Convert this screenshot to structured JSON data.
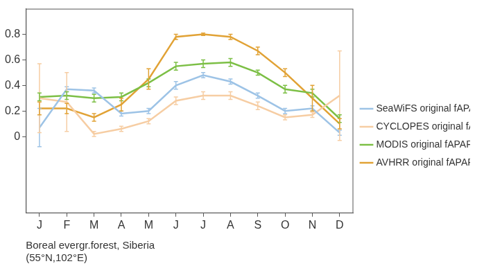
{
  "chart_data": {
    "type": "line",
    "x_label": [
      "Boreal evergr.forest, Siberia",
      "(55°N,102°E)"
    ],
    "categories": [
      "J",
      "F",
      "M",
      "A",
      "M",
      "J",
      "J",
      "A",
      "S",
      "O",
      "N",
      "D"
    ],
    "series": [
      {
        "name": "SeaWiFS original fAPAR",
        "color": "#9dc3e6",
        "values": [
          0.07,
          0.37,
          0.36,
          0.18,
          0.2,
          0.4,
          0.48,
          0.43,
          0.32,
          0.2,
          0.22,
          0.03
        ],
        "errors": [
          0.15,
          0.02,
          0.02,
          0.02,
          0.02,
          0.03,
          0.02,
          0.02,
          0.02,
          0.02,
          0.02,
          0.02
        ]
      },
      {
        "name": "CYCLOPES original fAPAR",
        "color": "#f6cda3",
        "values": [
          0.3,
          0.27,
          0.02,
          0.06,
          0.12,
          0.28,
          0.32,
          0.32,
          0.24,
          0.15,
          0.17,
          0.32
        ],
        "errors": [
          0.27,
          0.23,
          0.02,
          0.02,
          0.02,
          0.03,
          0.03,
          0.03,
          0.03,
          0.02,
          0.02,
          0.35
        ]
      },
      {
        "name": "MODIS original fAPAR",
        "color": "#7cbf45",
        "values": [
          0.31,
          0.32,
          0.3,
          0.31,
          0.42,
          0.55,
          0.57,
          0.58,
          0.5,
          0.37,
          0.34,
          0.14
        ],
        "errors": [
          0.03,
          0.03,
          0.03,
          0.03,
          0.03,
          0.03,
          0.03,
          0.03,
          0.02,
          0.03,
          0.03,
          0.03
        ]
      },
      {
        "name": "AVHRR original fAPAR",
        "color": "#e1a235",
        "values": [
          0.22,
          0.22,
          0.15,
          0.25,
          0.45,
          0.78,
          0.8,
          0.78,
          0.67,
          0.5,
          0.3,
          0.1
        ],
        "errors": [
          0.05,
          0.04,
          0.03,
          0.05,
          0.08,
          0.02,
          0.01,
          0.02,
          0.03,
          0.03,
          0.1,
          0.04
        ]
      }
    ],
    "ylim": [
      -0.6,
      1.0
    ],
    "yticks": [
      0,
      0.2,
      0.4,
      0.6,
      0.8
    ],
    "grid": false,
    "legend": "right"
  }
}
